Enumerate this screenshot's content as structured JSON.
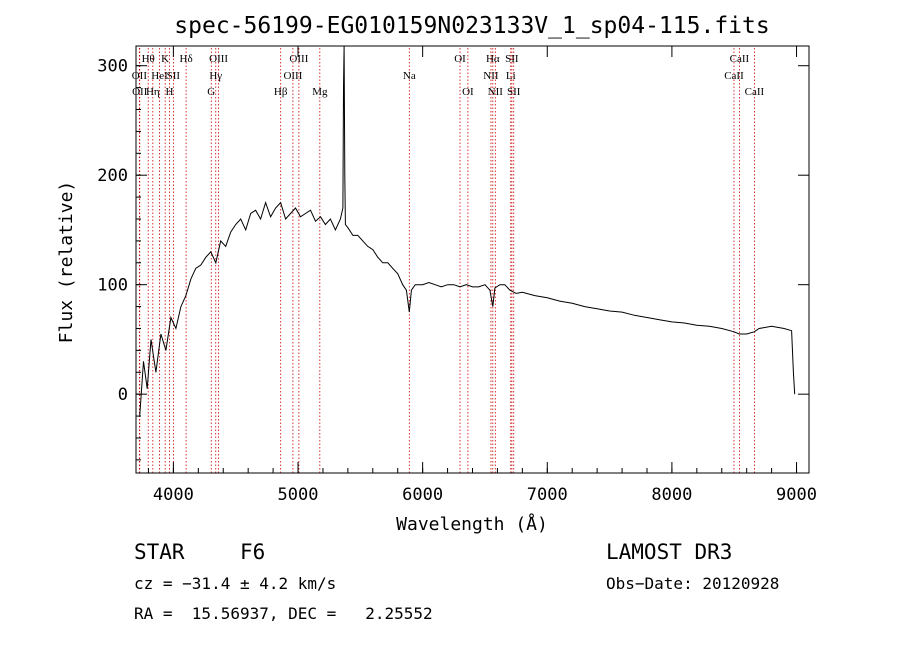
{
  "chart_data": {
    "type": "line",
    "title": "spec-56199-EG010159N023133V_1_sp04-115.fits",
    "xlabel": "Wavelength (Å)",
    "ylabel": "Flux (relative)",
    "xlim": [
      3700,
      9100
    ],
    "ylim": [
      -72,
      318
    ],
    "x_ticks": [
      4000,
      5000,
      6000,
      7000,
      8000,
      9000
    ],
    "y_ticks": [
      0,
      100,
      200,
      300
    ],
    "series": [
      {
        "name": "flux",
        "x": [
          3730,
          3760,
          3790,
          3820,
          3860,
          3900,
          3940,
          3980,
          4020,
          4060,
          4100,
          4140,
          4180,
          4220,
          4260,
          4300,
          4340,
          4380,
          4420,
          4460,
          4500,
          4540,
          4580,
          4620,
          4660,
          4700,
          4740,
          4780,
          4820,
          4860,
          4900,
          4940,
          4980,
          5020,
          5060,
          5100,
          5140,
          5180,
          5220,
          5260,
          5300,
          5340,
          5360,
          5365,
          5370,
          5375,
          5380,
          5400,
          5440,
          5480,
          5520,
          5560,
          5600,
          5640,
          5680,
          5720,
          5760,
          5800,
          5840,
          5870,
          5893,
          5910,
          5940,
          6000,
          6050,
          6100,
          6150,
          6200,
          6250,
          6300,
          6350,
          6400,
          6450,
          6500,
          6540,
          6563,
          6580,
          6620,
          6660,
          6700,
          6750,
          6800,
          6900,
          7000,
          7100,
          7200,
          7300,
          7400,
          7500,
          7600,
          7700,
          7800,
          7900,
          8000,
          8100,
          8200,
          8300,
          8400,
          8500,
          8540,
          8600,
          8660,
          8700,
          8800,
          8900,
          8960,
          8975,
          8985
        ],
        "y": [
          -20,
          30,
          5,
          50,
          20,
          55,
          40,
          70,
          60,
          80,
          90,
          105,
          115,
          118,
          125,
          130,
          120,
          140,
          135,
          148,
          155,
          160,
          150,
          165,
          168,
          160,
          175,
          162,
          170,
          175,
          160,
          165,
          170,
          162,
          165,
          168,
          158,
          162,
          155,
          160,
          150,
          160,
          170,
          280,
          330,
          200,
          155,
          152,
          145,
          145,
          140,
          135,
          132,
          125,
          120,
          120,
          115,
          110,
          100,
          95,
          75,
          95,
          100,
          100,
          102,
          100,
          98,
          100,
          100,
          98,
          100,
          98,
          98,
          100,
          95,
          80,
          97,
          100,
          100,
          95,
          92,
          93,
          90,
          88,
          85,
          83,
          80,
          78,
          76,
          75,
          72,
          70,
          68,
          66,
          65,
          63,
          62,
          60,
          57,
          55,
          55,
          57,
          60,
          62,
          60,
          58,
          20,
          0
        ]
      }
    ],
    "lines": [
      {
        "name": "OII",
        "x": 3727,
        "row": 2
      },
      {
        "name": "OII",
        "x": 3730,
        "row": 3
      },
      {
        "name": "Hθ",
        "x": 3798,
        "row": 1
      },
      {
        "name": "Hη",
        "x": 3835,
        "row": 3
      },
      {
        "name": "HeI",
        "x": 3889,
        "row": 2
      },
      {
        "name": "K",
        "x": 3934,
        "row": 1
      },
      {
        "name": "SII",
        "x": 4000,
        "row": 2
      },
      {
        "name": "H",
        "x": 3969,
        "row": 3
      },
      {
        "name": "Hδ",
        "x": 4102,
        "row": 1
      },
      {
        "name": "OIII",
        "x": 4363,
        "row": 1
      },
      {
        "name": "Hγ",
        "x": 4340,
        "row": 2
      },
      {
        "name": "G",
        "x": 4304,
        "row": 3
      },
      {
        "name": "Hβ",
        "x": 4861,
        "row": 3
      },
      {
        "name": "OIII",
        "x": 4959,
        "row": 2
      },
      {
        "name": "OIII",
        "x": 5007,
        "row": 1
      },
      {
        "name": "Mg",
        "x": 5175,
        "row": 3
      },
      {
        "name": "Na",
        "x": 5893,
        "row": 2
      },
      {
        "name": "OI",
        "x": 6300,
        "row": 1
      },
      {
        "name": "OI",
        "x": 6363,
        "row": 3
      },
      {
        "name": "NII",
        "x": 6548,
        "row": 2
      },
      {
        "name": "Hα",
        "x": 6563,
        "row": 1
      },
      {
        "name": "NII",
        "x": 6583,
        "row": 3
      },
      {
        "name": "Li",
        "x": 6707,
        "row": 2
      },
      {
        "name": "SII",
        "x": 6716,
        "row": 1
      },
      {
        "name": "SII",
        "x": 6731,
        "row": 3
      },
      {
        "name": "CaII",
        "x": 8498,
        "row": 2
      },
      {
        "name": "CaII",
        "x": 8542,
        "row": 1
      },
      {
        "name": "CaII",
        "x": 8662,
        "row": 3
      }
    ]
  },
  "footer": {
    "class_label": "STAR",
    "subclass": "F6",
    "cz": "cz = −31.4 ± 4.2 km/s",
    "radec": "RA =  15.56937, DEC =   2.25552",
    "survey": "LAMOST DR3",
    "obs_date": "Obs−Date: 20120928"
  }
}
